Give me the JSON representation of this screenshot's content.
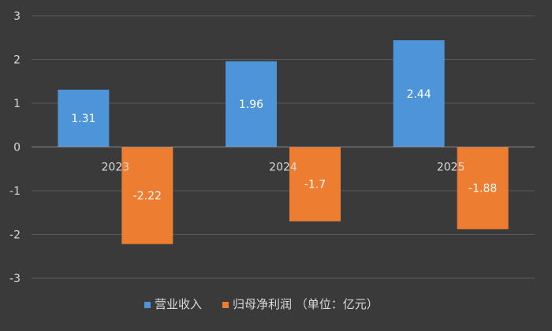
{
  "chart_data": {
    "type": "bar",
    "categories": [
      "2023",
      "2024",
      "2025"
    ],
    "series": [
      {
        "name": "营业收入",
        "values": [
          1.31,
          1.96,
          2.44
        ],
        "color": "#4e94d9"
      },
      {
        "name": "归母净利润 （单位：亿元）",
        "values": [
          -2.22,
          -1.7,
          -1.88
        ],
        "color": "#ed7d31"
      }
    ],
    "value_labels": [
      [
        "1.31",
        "1.96",
        "2.44"
      ],
      [
        "-2.22",
        "-1.7",
        "-1.88"
      ]
    ],
    "yticks": [
      "3",
      "2",
      "1",
      "0",
      "-1",
      "-2",
      "-3"
    ],
    "ylim": [
      -3,
      3
    ],
    "grid": true,
    "legend_position": "bottom"
  }
}
